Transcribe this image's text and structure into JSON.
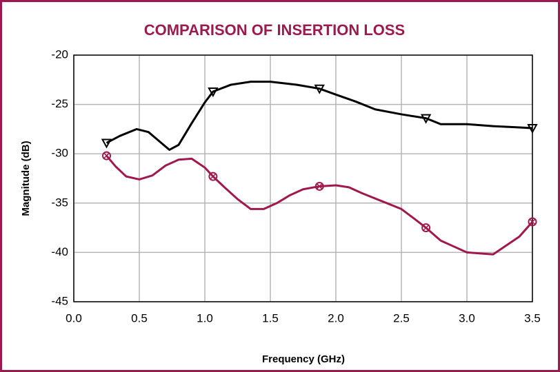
{
  "chart_data": {
    "type": "line",
    "title": "COMPARISON OF INSERTION LOSS",
    "x_label": "Frequency (GHz)",
    "y_label": "Magnitude (dB)",
    "xlim": [
      0,
      3.5
    ],
    "ylim": [
      -45,
      -20
    ],
    "xticks": [
      {
        "value": 0,
        "label": "0.0"
      },
      0.5,
      {
        "value": 1,
        "label": "1.0"
      },
      1.5,
      {
        "value": 2,
        "label": "2.0"
      },
      2.5,
      {
        "value": 3,
        "label": "3.0"
      },
      3.5
    ],
    "yticks": [
      -20,
      -25,
      -30,
      -35,
      -40,
      -45
    ],
    "grid": true,
    "series": [
      {
        "color": "#000000",
        "marker": "triangle-down",
        "x": [
          0.25,
          0.35,
          0.48,
          0.57,
          0.65,
          0.73,
          0.8,
          0.9,
          1.0,
          1.0625,
          1.2,
          1.35,
          1.5,
          1.7,
          1.875,
          2.0,
          2.15,
          2.3,
          2.5,
          2.6875,
          2.8,
          3.0,
          3.2,
          3.35,
          3.5
        ],
        "values": [
          -28.9,
          -28.2,
          -27.5,
          -27.8,
          -28.7,
          -29.6,
          -29.1,
          -26.9,
          -24.8,
          -23.7,
          -23.0,
          -22.7,
          -22.7,
          -23.0,
          -23.4,
          -24.0,
          -24.7,
          -25.5,
          -26.0,
          -26.4,
          -27.0,
          -27.0,
          -27.2,
          -27.3,
          -27.4
        ]
      },
      {
        "color": "#a0184e",
        "marker": "circle-x",
        "x": [
          0.25,
          0.32,
          0.4,
          0.5,
          0.6,
          0.7,
          0.8,
          0.9,
          1.0,
          1.0625,
          1.15,
          1.25,
          1.35,
          1.45,
          1.55,
          1.65,
          1.75,
          1.875,
          2.0,
          2.1,
          2.2,
          2.35,
          2.5,
          2.6,
          2.6875,
          2.8,
          2.9,
          3.0,
          3.1,
          3.2,
          3.3,
          3.4,
          3.5
        ],
        "values": [
          -30.2,
          -31.3,
          -32.3,
          -32.6,
          -32.2,
          -31.2,
          -30.6,
          -30.5,
          -31.4,
          -32.3,
          -33.4,
          -34.6,
          -35.6,
          -35.6,
          -35.0,
          -34.2,
          -33.6,
          -33.3,
          -33.2,
          -33.4,
          -34.0,
          -34.8,
          -35.6,
          -36.6,
          -37.5,
          -38.8,
          -39.4,
          -40.0,
          -40.1,
          -40.2,
          -39.3,
          -38.4,
          -36.9
        ]
      }
    ]
  }
}
